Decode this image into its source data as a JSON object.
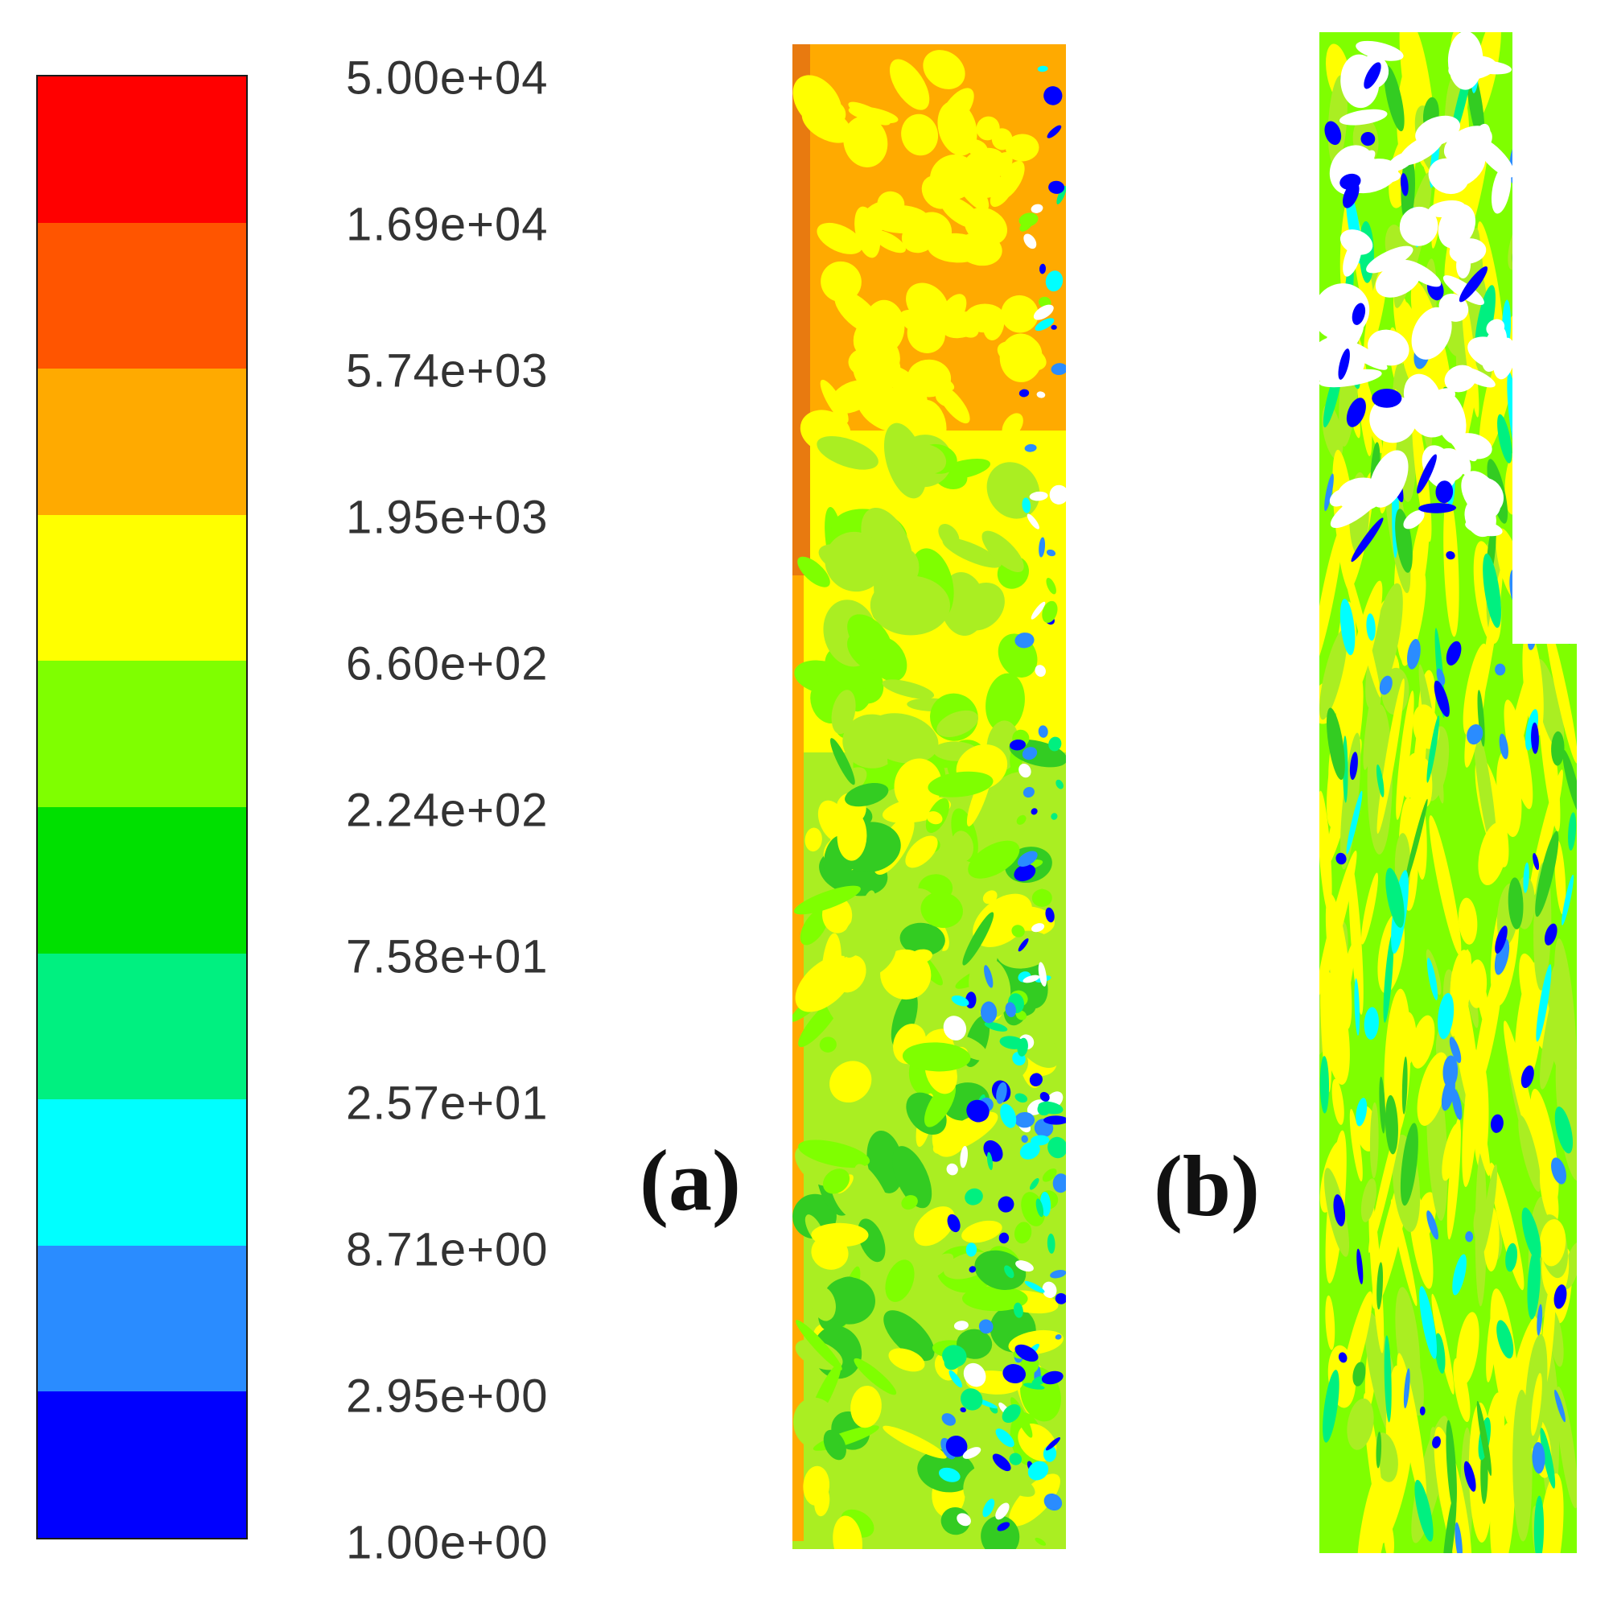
{
  "legend": {
    "band_colors": [
      "#ff0000",
      "#ff5500",
      "#ffaa00",
      "#ffff00",
      "#7fff00",
      "#00e000",
      "#00f080",
      "#00ffff",
      "#2a8cff",
      "#0000ff"
    ],
    "tick_labels": [
      "5.00e+04",
      "1.69e+04",
      "5.74e+03",
      "1.95e+03",
      "6.60e+02",
      "2.24e+02",
      "7.58e+01",
      "2.57e+01",
      "8.71e+00",
      "2.95e+00",
      "1.00e+00"
    ]
  },
  "panels": [
    {
      "label": "(a)"
    },
    {
      "label": "(b)"
    }
  ],
  "colors": {
    "orange": "#ffaa00",
    "dark_orange": "#e87a10",
    "yellow": "#ffff00",
    "yellow_green": "#aaee22",
    "green": "#7fff00",
    "dark_green": "#33cc22",
    "aqua_green": "#00f080",
    "cyan": "#00ffff",
    "blue": "#2a8cff",
    "dark_blue": "#0000ff"
  }
}
